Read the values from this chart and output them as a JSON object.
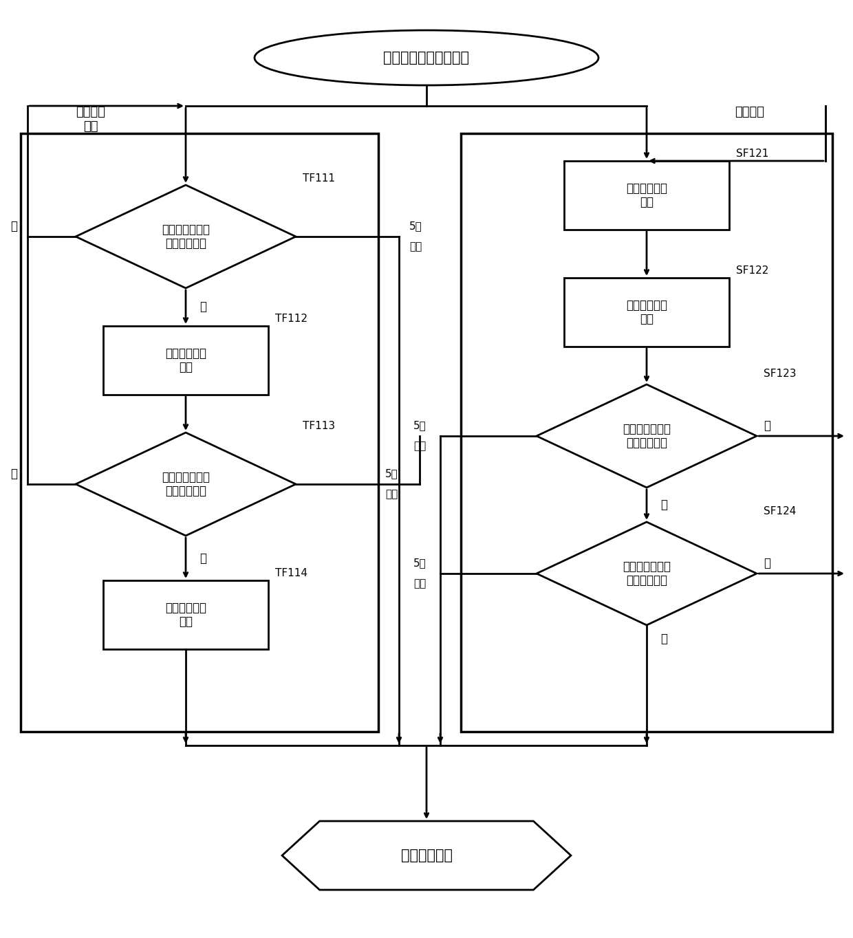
{
  "bg_color": "#ffffff",
  "line_color": "#000000",
  "title_oval": "充放电机连接充电车辆",
  "label_bms": "电池管理\n系统",
  "label_charger": "充放电机",
  "node_TF111": "判断是否接收到\n充电信息报文",
  "node_TF112": "发送充电确认\n报文",
  "node_TF113": "判断是否接收到\n放电信息报文",
  "node_TF114": "发送放电确认\n报文",
  "node_SF121": "发送充电信息\n报文",
  "node_SF122": "发送放电信息\n报文",
  "node_SF123": "判断是否接收到\n充电确认报文",
  "node_SF124": "判断是否接收到\n放电确认报文",
  "node_end": "握手辨识阶段",
  "tag_TF111": "TF111",
  "tag_TF112": "TF112",
  "tag_TF113": "TF113",
  "tag_TF114": "TF114",
  "tag_SF121": "SF121",
  "tag_SF122": "SF122",
  "tag_SF123": "SF123",
  "tag_SF124": "SF124",
  "yes_zh": "是",
  "no_zh": "否",
  "timeout_5s_1": "5秒",
  "timeout_5s_2": "超时"
}
